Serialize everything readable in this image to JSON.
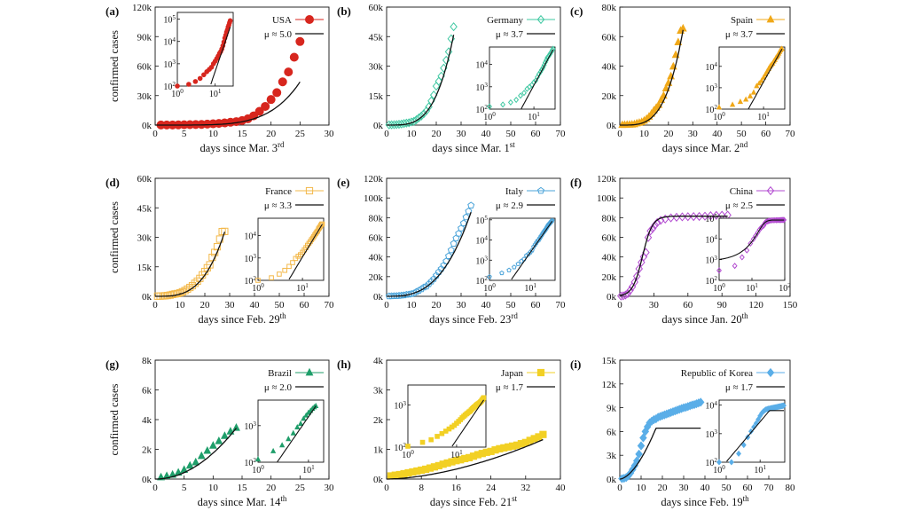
{
  "chart_data": [
    {
      "panel": "(a)",
      "type": "scatter",
      "xlabel": "days since Mar. 3",
      "xlabel_sup": "rd",
      "ylabel": "confirmed cases",
      "xlim": [
        0,
        30
      ],
      "ylim": [
        0,
        120000
      ],
      "xticks": [
        0,
        5,
        10,
        15,
        20,
        25,
        30
      ],
      "yticks": [
        0,
        30000,
        60000,
        90000,
        120000
      ],
      "ytick_labels": [
        "0k",
        "30k",
        "60k",
        "90k",
        "120k"
      ],
      "country": "USA",
      "mu": "μ ≈ 5.0",
      "color": "#d7261e",
      "marker": "circle",
      "x": [
        1,
        2,
        3,
        4,
        5,
        6,
        7,
        8,
        9,
        10,
        11,
        12,
        13,
        14,
        15,
        16,
        17,
        18,
        19,
        20,
        21,
        22,
        23,
        24,
        25
      ],
      "y": [
        100,
        120,
        160,
        220,
        320,
        440,
        560,
        700,
        1000,
        1300,
        1700,
        2200,
        2900,
        3500,
        4600,
        6400,
        9400,
        14000,
        19000,
        26000,
        33000,
        44000,
        54000,
        69000,
        85000
      ],
      "fit": {
        "type": "power",
        "A": 0.0045,
        "mu": 5.0
      },
      "inset": {
        "pos": "top",
        "xticks": [
          1,
          10
        ],
        "xtick_labels": [
          "10^0",
          "10^1"
        ],
        "yticks": [
          100,
          1000,
          10000,
          100000
        ],
        "ytick_labels": [
          "10^2",
          "10^3",
          "10^4",
          "10^5"
        ],
        "xlim": [
          1,
          30
        ],
        "ylim": [
          100,
          200000
        ]
      }
    },
    {
      "panel": "(b)",
      "type": "scatter",
      "xlabel": "days since Mar. 1",
      "xlabel_sup": "st",
      "ylabel": "",
      "xlim": [
        0,
        70
      ],
      "ylim": [
        0,
        60000
      ],
      "xticks": [
        0,
        10,
        20,
        30,
        40,
        50,
        60,
        70
      ],
      "yticks": [
        0,
        15000,
        30000,
        45000,
        60000
      ],
      "ytick_labels": [
        "0k",
        "15k",
        "30k",
        "45k",
        "60k"
      ],
      "country": "Germany",
      "mu": "μ ≈ 3.7",
      "color": "#3fc8a2",
      "marker": "diamond",
      "x": [
        1,
        2,
        3,
        4,
        5,
        6,
        7,
        8,
        9,
        10,
        11,
        12,
        13,
        14,
        15,
        16,
        17,
        18,
        19,
        20,
        21,
        22,
        23,
        24,
        25,
        26,
        27
      ],
      "y": [
        130,
        160,
        200,
        260,
        400,
        530,
        800,
        1000,
        1200,
        1600,
        1900,
        2700,
        3700,
        4600,
        5800,
        7200,
        9300,
        12300,
        15300,
        19800,
        22300,
        24900,
        29000,
        33000,
        37300,
        43900,
        50000
      ],
      "fit": {
        "type": "power",
        "A": 0.232,
        "mu": 3.7
      },
      "inset": {
        "pos": "right",
        "xticks": [
          1,
          10
        ],
        "xtick_labels": [
          "10^0",
          "10^1"
        ],
        "yticks": [
          100,
          1000,
          10000
        ],
        "ytick_labels": [
          "10^2",
          "10^3",
          "10^4"
        ],
        "xlim": [
          1,
          30
        ],
        "ylim": [
          100,
          60000
        ]
      }
    },
    {
      "panel": "(c)",
      "type": "scatter",
      "xlabel": "days since Mar. 2",
      "xlabel_sup": "nd",
      "ylabel": "",
      "xlim": [
        0,
        70
      ],
      "ylim": [
        0,
        80000
      ],
      "xticks": [
        0,
        10,
        20,
        30,
        40,
        50,
        60,
        70
      ],
      "yticks": [
        0,
        20000,
        40000,
        60000,
        80000
      ],
      "ytick_labels": [
        "0k",
        "20k",
        "40k",
        "60k",
        "80k"
      ],
      "country": "Spain",
      "mu": "μ ≈ 3.7",
      "color": "#f0a818",
      "marker": "triangle",
      "x": [
        1,
        2,
        3,
        4,
        5,
        6,
        7,
        8,
        9,
        10,
        11,
        12,
        13,
        14,
        15,
        16,
        17,
        18,
        19,
        20,
        21,
        22,
        23,
        24,
        25,
        26
      ],
      "y": [
        120,
        160,
        220,
        280,
        400,
        600,
        1200,
        1600,
        2100,
        3000,
        4200,
        5700,
        7700,
        9900,
        11800,
        13700,
        17100,
        19900,
        24900,
        28600,
        33100,
        39700,
        47600,
        56200,
        64000,
        65500
      ],
      "fit": {
        "type": "power",
        "A": 0.375,
        "mu": 3.7
      },
      "inset": {
        "pos": "right",
        "xticks": [
          1,
          10
        ],
        "xtick_labels": [
          "10^0",
          "10^1"
        ],
        "yticks": [
          100,
          1000,
          10000
        ],
        "ytick_labels": [
          "10^2",
          "10^3",
          "10^4"
        ],
        "xlim": [
          1,
          30
        ],
        "ylim": [
          100,
          80000
        ]
      }
    },
    {
      "panel": "(d)",
      "type": "scatter",
      "xlabel": "days since Feb. 29",
      "xlabel_sup": "th",
      "ylabel": "confirmed cases",
      "xlim": [
        0,
        70
      ],
      "ylim": [
        0,
        60000
      ],
      "xticks": [
        0,
        10,
        20,
        30,
        40,
        50,
        60,
        70
      ],
      "yticks": [
        0,
        15000,
        30000,
        45000,
        60000
      ],
      "ytick_labels": [
        "0k",
        "15k",
        "30k",
        "45k",
        "60k"
      ],
      "country": "France",
      "mu": "μ ≈ 3.3",
      "color": "#f3b84a",
      "marker": "square",
      "x": [
        1,
        2,
        3,
        4,
        5,
        6,
        7,
        8,
        9,
        10,
        11,
        12,
        13,
        14,
        15,
        16,
        17,
        18,
        19,
        20,
        21,
        22,
        23,
        24,
        25,
        26,
        27,
        28
      ],
      "y": [
        100,
        130,
        190,
        280,
        420,
        620,
        950,
        1200,
        1400,
        1800,
        2300,
        2900,
        3700,
        4500,
        5400,
        6600,
        7700,
        9100,
        10900,
        12600,
        14500,
        16000,
        19800,
        22300,
        25200,
        29100,
        32900,
        33000
      ],
      "fit": {
        "type": "power",
        "A": 0.55,
        "mu": 3.3
      },
      "inset": {
        "pos": "right",
        "xticks": [
          1,
          10
        ],
        "xtick_labels": [
          "10^0",
          "10^1"
        ],
        "yticks": [
          100,
          1000,
          10000
        ],
        "ytick_labels": [
          "10^2",
          "10^3",
          "10^4"
        ],
        "xlim": [
          1,
          30
        ],
        "ylim": [
          100,
          60000
        ]
      }
    },
    {
      "panel": "(e)",
      "type": "scatter",
      "xlabel": "days since Feb. 23",
      "xlabel_sup": "rd",
      "ylabel": "",
      "xlim": [
        0,
        70
      ],
      "ylim": [
        0,
        120000
      ],
      "xticks": [
        0,
        10,
        20,
        30,
        40,
        50,
        60,
        70
      ],
      "yticks": [
        0,
        20000,
        40000,
        60000,
        80000,
        100000,
        120000
      ],
      "ytick_labels": [
        "0k",
        "20k",
        "40k",
        "60k",
        "80k",
        "100k",
        "120k"
      ],
      "country": "Italy",
      "mu": "μ ≈ 2.9",
      "color": "#4aa3d9",
      "marker": "pentagon",
      "x": [
        1,
        2,
        3,
        4,
        5,
        6,
        7,
        8,
        9,
        10,
        11,
        12,
        13,
        14,
        15,
        16,
        17,
        18,
        19,
        20,
        21,
        22,
        23,
        24,
        25,
        26,
        27,
        28,
        29,
        30,
        31,
        32,
        33,
        34
      ],
      "y": [
        150,
        230,
        320,
        450,
        650,
        890,
        1130,
        1700,
        2000,
        2500,
        3100,
        4600,
        5900,
        7400,
        9200,
        10100,
        12500,
        15100,
        17700,
        21100,
        24700,
        27900,
        31500,
        35700,
        41000,
        47000,
        53600,
        59100,
        63900,
        69200,
        74400,
        80500,
        86500,
        92400
      ],
      "fit": {
        "type": "power",
        "A": 3.1,
        "mu": 2.9
      },
      "inset": {
        "pos": "right",
        "xticks": [
          1,
          10
        ],
        "xtick_labels": [
          "10^0",
          "10^1"
        ],
        "yticks": [
          100,
          1000,
          10000,
          100000
        ],
        "ytick_labels": [
          "10^2",
          "10^3",
          "10^4",
          "10^5"
        ],
        "xlim": [
          1,
          40
        ],
        "ylim": [
          100,
          120000
        ]
      }
    },
    {
      "panel": "(f)",
      "type": "scatter",
      "xlabel": "days since Jan. 20",
      "xlabel_sup": "th",
      "ylabel": "",
      "xlim": [
        0,
        150
      ],
      "ylim": [
        0,
        120000
      ],
      "xticks": [
        0,
        30,
        60,
        90,
        120,
        150
      ],
      "yticks": [
        0,
        20000,
        40000,
        60000,
        80000,
        100000,
        120000
      ],
      "ytick_labels": [
        "0k",
        "20k",
        "40k",
        "60k",
        "80k",
        "100k",
        "120k"
      ],
      "country": "China",
      "mu": "μ ≈ 2.5",
      "color": "#b24bd0",
      "marker": "diamond",
      "x": [
        1,
        3,
        5,
        7,
        9,
        11,
        13,
        15,
        17,
        19,
        21,
        23,
        25,
        27,
        29,
        31,
        33,
        36,
        40,
        45,
        50,
        55,
        60,
        65,
        70,
        75,
        80,
        85,
        90,
        95
      ],
      "y": [
        300,
        500,
        1300,
        2800,
        6000,
        9700,
        14400,
        20400,
        28000,
        34500,
        40200,
        44600,
        59800,
        66500,
        69000,
        72400,
        75000,
        77200,
        78600,
        79800,
        80400,
        80800,
        81000,
        81100,
        81200,
        81500,
        82000,
        82300,
        82500,
        82600
      ],
      "fit": {
        "type": "logistic",
        "K": 81500,
        "r": 0.23,
        "t0": 20
      },
      "inset": {
        "pos": "right",
        "xticks": [
          1,
          10,
          100
        ],
        "xtick_labels": [
          "10^0",
          "10^1",
          "10^2"
        ],
        "yticks": [
          100,
          1000,
          10000,
          100000
        ],
        "ytick_labels": [
          "10^2",
          "10^3",
          "10^4",
          "10^5"
        ],
        "xlim": [
          1,
          100
        ],
        "ylim": [
          100,
          100000
        ]
      }
    },
    {
      "panel": "(g)",
      "type": "scatter",
      "xlabel": "days since Mar. 14",
      "xlabel_sup": "th",
      "ylabel": "confirmed cases",
      "xlim": [
        0,
        30
      ],
      "ylim": [
        0,
        8000
      ],
      "xticks": [
        0,
        5,
        10,
        15,
        20,
        25,
        30
      ],
      "yticks": [
        0,
        2000,
        4000,
        6000,
        8000
      ],
      "ytick_labels": [
        "0k",
        "2k",
        "4k",
        "6k",
        "8k"
      ],
      "country": "Brazil",
      "mu": "μ ≈ 2.0",
      "color": "#1f9e6a",
      "marker": "triangle",
      "x": [
        1,
        2,
        3,
        4,
        5,
        6,
        7,
        8,
        9,
        10,
        11,
        12,
        13,
        14
      ],
      "y": [
        120,
        200,
        290,
        430,
        620,
        900,
        1130,
        1550,
        1900,
        2250,
        2550,
        2900,
        3200,
        3450
      ],
      "fit": {
        "type": "power",
        "A": 17.5,
        "mu": 2.0
      },
      "inset": {
        "pos": "right",
        "xticks": [
          1,
          10
        ],
        "xtick_labels": [
          "10^0",
          "10^1"
        ],
        "yticks": [
          100,
          1000
        ],
        "ytick_labels": [
          "10^2",
          "10^3"
        ],
        "xlim": [
          1,
          20
        ],
        "ylim": [
          100,
          5000
        ]
      }
    },
    {
      "panel": "(h)",
      "type": "scatter",
      "xlabel": "days since Feb. 21",
      "xlabel_sup": "st",
      "ylabel": "",
      "xlim": [
        0,
        40
      ],
      "ylim": [
        0,
        4000
      ],
      "xticks": [
        0,
        8,
        16,
        24,
        32,
        40
      ],
      "yticks": [
        0,
        1000,
        2000,
        3000,
        4000
      ],
      "ytick_labels": [
        "0k",
        "1k",
        "2k",
        "3k",
        "4k"
      ],
      "country": "Japan",
      "mu": "μ ≈ 1.7",
      "color": "#f2d024",
      "marker": "square",
      "x": [
        1,
        2,
        3,
        4,
        5,
        6,
        7,
        8,
        9,
        10,
        11,
        12,
        13,
        14,
        15,
        16,
        17,
        18,
        19,
        20,
        21,
        22,
        23,
        24,
        25,
        26,
        27,
        28,
        29,
        30,
        31,
        32,
        33,
        34,
        35,
        36
      ],
      "y": [
        105,
        130,
        150,
        180,
        210,
        240,
        270,
        300,
        330,
        370,
        410,
        450,
        500,
        540,
        580,
        620,
        650,
        690,
        720,
        770,
        820,
        860,
        900,
        930,
        980,
        1020,
        1050,
        1080,
        1110,
        1140,
        1190,
        1230,
        1300,
        1360,
        1420,
        1500
      ],
      "fit": {
        "type": "power",
        "A": 3.0,
        "mu": 1.7
      },
      "inset": {
        "pos": "topleft",
        "xticks": [
          1,
          10
        ],
        "xtick_labels": [
          "10^0",
          "10^1"
        ],
        "yticks": [
          100,
          1000
        ],
        "ytick_labels": [
          "10^2",
          "10^3"
        ],
        "xlim": [
          1,
          40
        ],
        "ylim": [
          100,
          3000
        ]
      }
    },
    {
      "panel": "(i)",
      "type": "scatter",
      "xlabel": "days since Feb. 19",
      "xlabel_sup": "th",
      "ylabel": "",
      "xlim": [
        0,
        80
      ],
      "ylim": [
        0,
        15000
      ],
      "xticks": [
        0,
        10,
        20,
        30,
        40,
        50,
        60,
        70,
        80
      ],
      "yticks": [
        0,
        3000,
        6000,
        9000,
        12000,
        15000
      ],
      "ytick_labels": [
        "0k",
        "3k",
        "6k",
        "9k",
        "12k",
        "15k"
      ],
      "country": "Republic of Korea",
      "mu": "μ ≈ 1.7",
      "color": "#5aaee8",
      "marker": "diamond",
      "x": [
        1,
        2,
        3,
        4,
        5,
        6,
        7,
        8,
        9,
        10,
        11,
        12,
        13,
        14,
        15,
        16,
        17,
        18,
        19,
        20,
        21,
        22,
        23,
        24,
        25,
        26,
        27,
        28,
        29,
        30,
        31,
        32,
        33,
        34,
        35,
        36,
        37,
        38
      ],
      "y": [
        50,
        100,
        200,
        400,
        750,
        1200,
        1700,
        2300,
        3150,
        4200,
        5200,
        6000,
        6600,
        7100,
        7300,
        7500,
        7600,
        7800,
        7900,
        8000,
        8100,
        8200,
        8300,
        8400,
        8500,
        8600,
        8700,
        8800,
        8900,
        9000,
        9050,
        9150,
        9250,
        9350,
        9400,
        9500,
        9600,
        9700
      ],
      "fit": {
        "type": "powercap",
        "A": 52,
        "mu": 1.7,
        "xmax": 17
      },
      "inset": {
        "pos": "right",
        "xticks": [
          1,
          10
        ],
        "xtick_labels": [
          "10^0",
          "10^1"
        ],
        "yticks": [
          100,
          1000,
          10000
        ],
        "ytick_labels": [
          "10^2",
          "10^3",
          "10^4"
        ],
        "xlim": [
          1,
          40
        ],
        "ylim": [
          100,
          15000
        ]
      }
    }
  ]
}
